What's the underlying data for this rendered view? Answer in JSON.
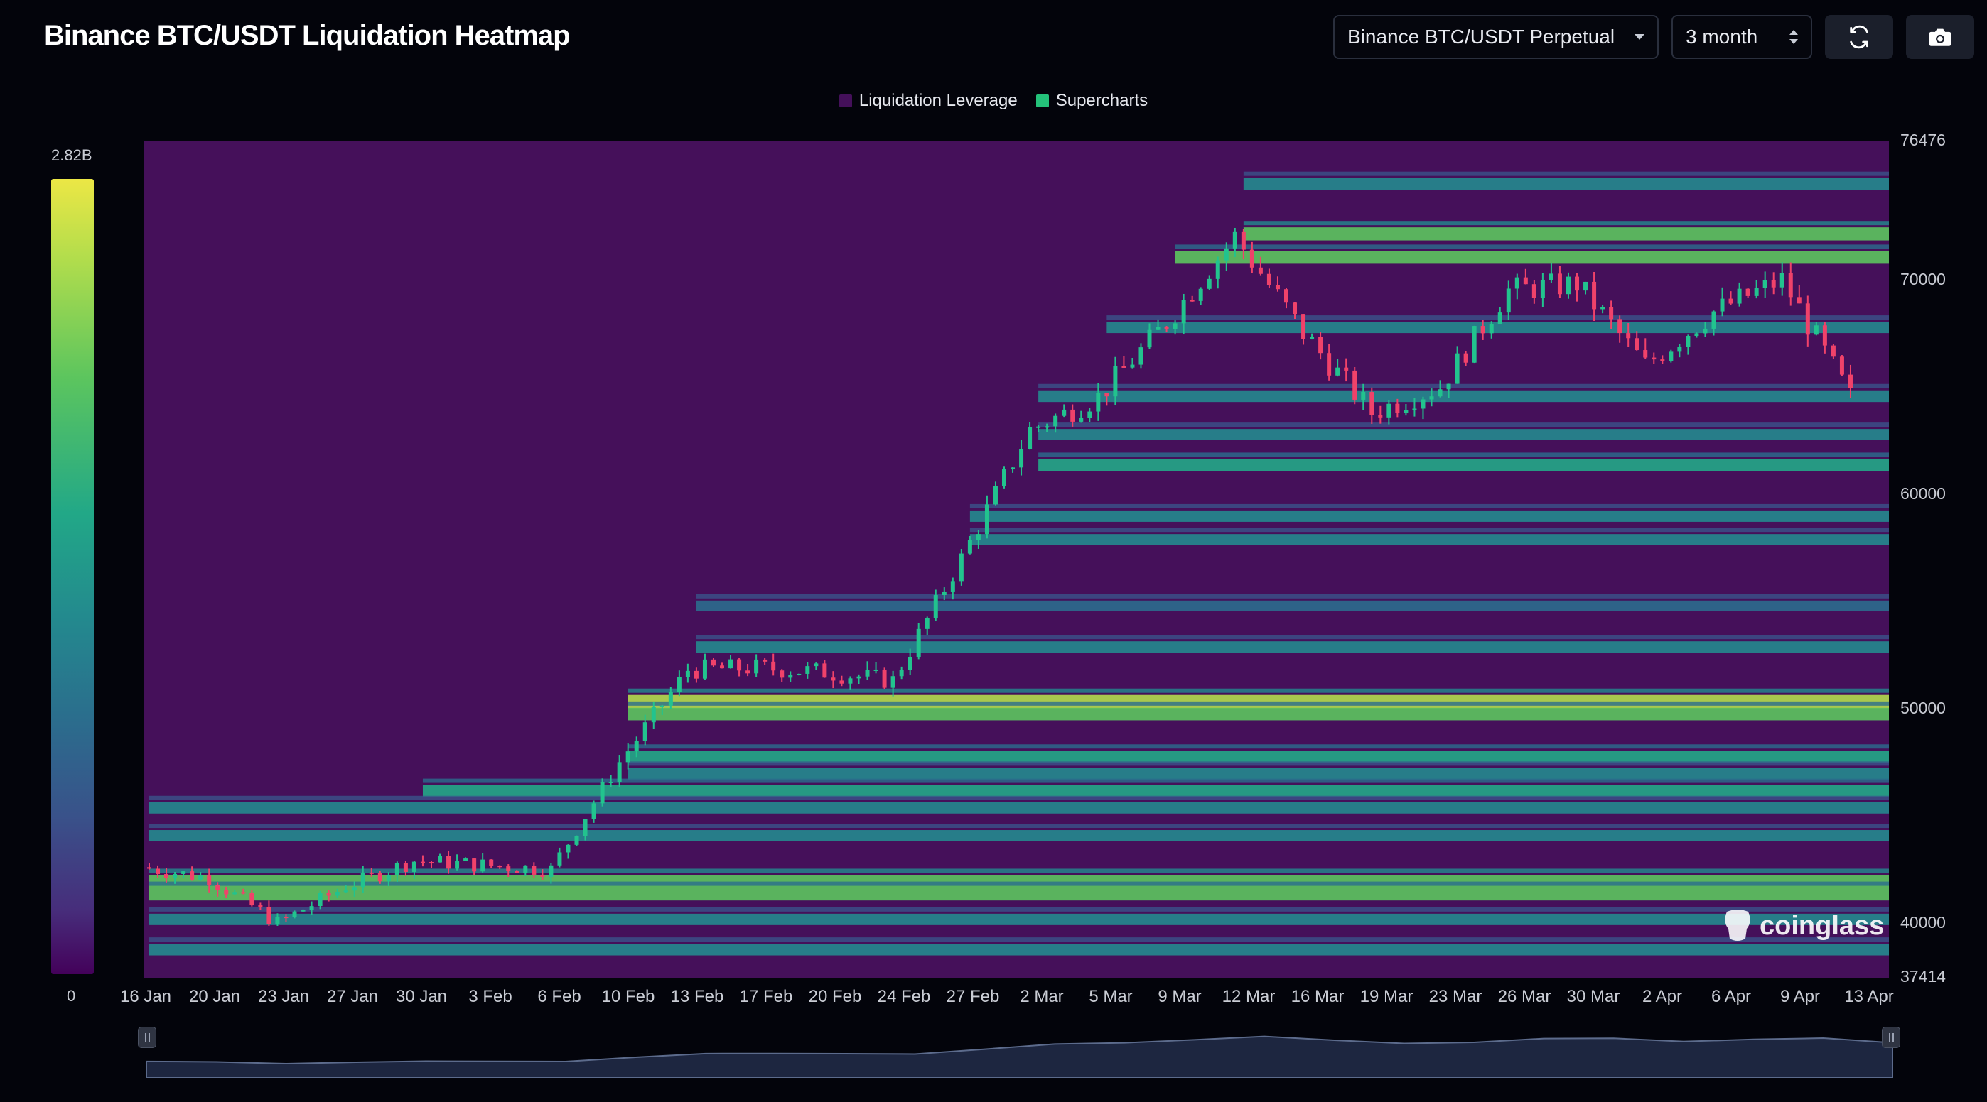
{
  "header": {
    "title": "Binance BTC/USDT Liquidation Heatmap",
    "symbol_select": "Binance BTC/USDT Perpetual",
    "range_select": "3 month"
  },
  "icons": {
    "refresh": "refresh-icon",
    "screenshot": "camera-icon"
  },
  "legend": {
    "items": [
      {
        "label": "Liquidation Leverage",
        "color": "#44105a"
      },
      {
        "label": "Supercharts",
        "color": "#24c27a"
      }
    ]
  },
  "colorbar": {
    "max_label": "2.82B",
    "min_label": "0"
  },
  "watermark": "coinglass",
  "chart_data": {
    "type": "heatmap",
    "yticks": [
      "76476",
      "70000",
      "60000",
      "50000",
      "40000",
      "37414"
    ],
    "ylim": [
      37414,
      76476
    ],
    "xticks": [
      "16 Jan",
      "20 Jan",
      "23 Jan",
      "27 Jan",
      "30 Jan",
      "3 Feb",
      "6 Feb",
      "10 Feb",
      "13 Feb",
      "17 Feb",
      "20 Feb",
      "24 Feb",
      "27 Feb",
      "2 Mar",
      "5 Mar",
      "9 Mar",
      "12 Mar",
      "16 Mar",
      "19 Mar",
      "23 Mar",
      "26 Mar",
      "30 Mar",
      "2 Apr",
      "6 Apr",
      "9 Apr",
      "13 Apr"
    ],
    "price_close_estimates": [
      42600,
      42100,
      40000,
      41700,
      42900,
      42700,
      42500,
      47500,
      51800,
      51900,
      51700,
      51300,
      57000,
      63000,
      64500,
      68000,
      72000,
      67500,
      63800,
      65000,
      69500,
      69800,
      66000,
      68500,
      70000,
      64500
    ],
    "liquidation_bands": [
      {
        "price": 74500,
        "intensity": 0.55
      },
      {
        "price": 72200,
        "intensity": 0.8
      },
      {
        "price": 71100,
        "intensity": 0.75
      },
      {
        "price": 67800,
        "intensity": 0.5
      },
      {
        "price": 64600,
        "intensity": 0.55
      },
      {
        "price": 62800,
        "intensity": 0.45
      },
      {
        "price": 61400,
        "intensity": 0.6
      },
      {
        "price": 59000,
        "intensity": 0.5
      },
      {
        "price": 57900,
        "intensity": 0.45
      },
      {
        "price": 54800,
        "intensity": 0.4
      },
      {
        "price": 52900,
        "intensity": 0.5
      },
      {
        "price": 50400,
        "intensity": 0.85
      },
      {
        "price": 49800,
        "intensity": 0.7
      },
      {
        "price": 47800,
        "intensity": 0.65
      },
      {
        "price": 47000,
        "intensity": 0.55
      },
      {
        "price": 46200,
        "intensity": 0.65
      },
      {
        "price": 45400,
        "intensity": 0.5
      },
      {
        "price": 44100,
        "intensity": 0.45
      },
      {
        "price": 42000,
        "intensity": 0.8
      },
      {
        "price": 41400,
        "intensity": 0.7
      },
      {
        "price": 40200,
        "intensity": 0.5
      },
      {
        "price": 38800,
        "intensity": 0.55
      }
    ],
    "colorscale": [
      "#44015a",
      "#472d7b",
      "#39528a",
      "#2b6d8d",
      "#238a8e",
      "#22a887",
      "#5cc55e",
      "#b2dd4c",
      "#ece745"
    ],
    "grid": false,
    "legend": "top-center"
  }
}
